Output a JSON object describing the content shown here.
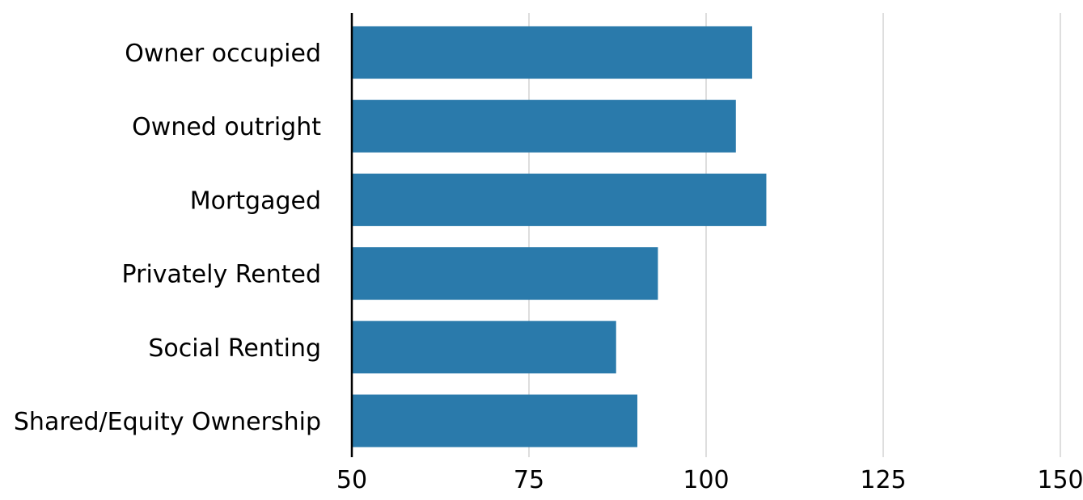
{
  "chart_data": {
    "type": "bar",
    "orientation": "horizontal",
    "title": "",
    "xlabel": "",
    "ylabel": "",
    "categories": [
      "Owner occupied",
      "Owned outright",
      "Mortgaged",
      "Privately Rented",
      "Social Renting",
      "Shared/Equity Ownership"
    ],
    "values": [
      106.5,
      104.2,
      108.5,
      93.2,
      87.3,
      90.3
    ],
    "xlim": [
      50,
      150
    ],
    "xticks": [
      50,
      75,
      100,
      125,
      150
    ],
    "xtick_labels": [
      "50",
      "75",
      "100",
      "125",
      "150"
    ],
    "grid": true,
    "legend": "none",
    "bar_color": "#2a7aab",
    "grid_color": "#c8c8c8",
    "axis_color": "#000000"
  }
}
